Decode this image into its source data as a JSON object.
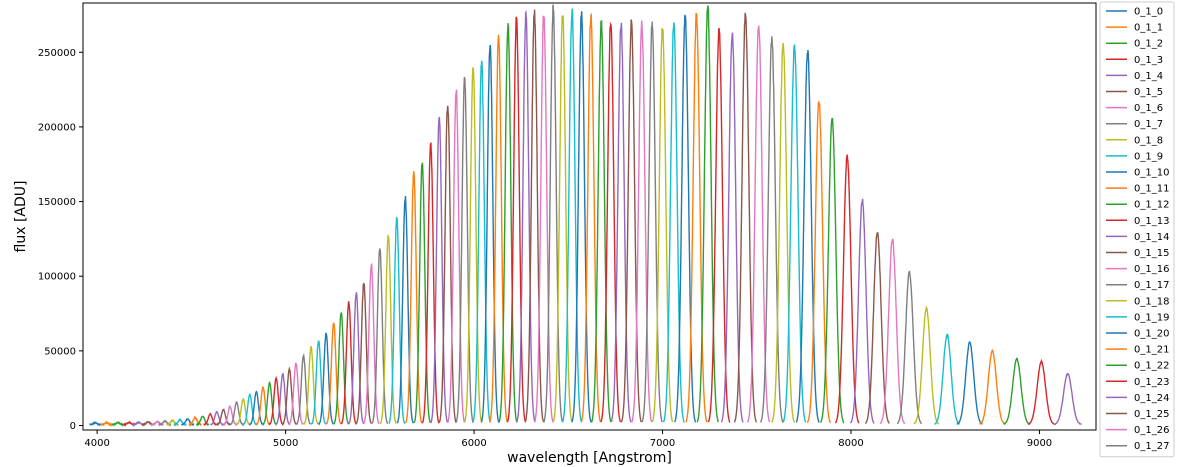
{
  "chart_data": {
    "type": "line",
    "title": "",
    "xlabel": "wavelength [Angstrom]",
    "ylabel": "flux [ADU]",
    "xlim": [
      3925,
      9300
    ],
    "ylim": [
      -3000,
      283000
    ],
    "xticks": [
      4000,
      5000,
      6000,
      7000,
      8000,
      9000
    ],
    "yticks": [
      0,
      50000,
      100000,
      150000,
      200000,
      250000
    ],
    "grid": false,
    "legend_placement": "outside-right",
    "palette": [
      "#1f77b4",
      "#ff7f0e",
      "#2ca02c",
      "#d62728",
      "#9467bd",
      "#8c564b",
      "#e377c2",
      "#7f7f7f",
      "#bcbd22",
      "#17becf"
    ],
    "series": [
      {
        "name": "0_1_0",
        "color": "#1f77b4"
      },
      {
        "name": "0_1_1",
        "color": "#ff7f0e"
      },
      {
        "name": "0_1_2",
        "color": "#2ca02c"
      },
      {
        "name": "0_1_3",
        "color": "#d62728"
      },
      {
        "name": "0_1_4",
        "color": "#9467bd"
      },
      {
        "name": "0_1_5",
        "color": "#8c564b"
      },
      {
        "name": "0_1_6",
        "color": "#e377c2"
      },
      {
        "name": "0_1_7",
        "color": "#7f7f7f"
      },
      {
        "name": "0_1_8",
        "color": "#bcbd22"
      },
      {
        "name": "0_1_9",
        "color": "#17becf"
      },
      {
        "name": "0_1_10",
        "color": "#1f77b4"
      },
      {
        "name": "0_1_11",
        "color": "#ff7f0e"
      },
      {
        "name": "0_1_12",
        "color": "#2ca02c"
      },
      {
        "name": "0_1_13",
        "color": "#d62728"
      },
      {
        "name": "0_1_14",
        "color": "#9467bd"
      },
      {
        "name": "0_1_15",
        "color": "#8c564b"
      },
      {
        "name": "0_1_16",
        "color": "#e377c2"
      },
      {
        "name": "0_1_17",
        "color": "#7f7f7f"
      },
      {
        "name": "0_1_18",
        "color": "#bcbd22"
      },
      {
        "name": "0_1_19",
        "color": "#17becf"
      },
      {
        "name": "0_1_20",
        "color": "#1f77b4"
      },
      {
        "name": "0_1_21",
        "color": "#ff7f0e"
      },
      {
        "name": "0_1_22",
        "color": "#2ca02c"
      },
      {
        "name": "0_1_23",
        "color": "#d62728"
      },
      {
        "name": "0_1_24",
        "color": "#9467bd"
      },
      {
        "name": "0_1_25",
        "color": "#8c564b"
      },
      {
        "name": "0_1_26",
        "color": "#e377c2"
      },
      {
        "name": "0_1_27",
        "color": "#7f7f7f"
      }
    ],
    "peaks": [
      [
        3990,
        1200
      ],
      [
        4050,
        1300
      ],
      [
        4110,
        1400
      ],
      [
        4170,
        1500
      ],
      [
        4220,
        1600
      ],
      [
        4270,
        1800
      ],
      [
        4320,
        2000
      ],
      [
        4360,
        2300
      ],
      [
        4400,
        2700
      ],
      [
        4440,
        3200
      ],
      [
        4480,
        3800
      ],
      [
        4520,
        4600
      ],
      [
        4560,
        5600
      ],
      [
        4600,
        7000
      ],
      [
        4635,
        8500
      ],
      [
        4670,
        10000
      ],
      [
        4705,
        12000
      ],
      [
        4740,
        15000
      ],
      [
        4775,
        17000
      ],
      [
        4810,
        20000
      ],
      [
        4845,
        22000
      ],
      [
        4880,
        25000
      ],
      [
        4915,
        28000
      ],
      [
        4950,
        31000
      ],
      [
        4985,
        34000
      ],
      [
        5020,
        37000
      ],
      [
        5055,
        41000
      ],
      [
        5095,
        46000
      ],
      [
        5135,
        52000
      ],
      [
        5175,
        56000
      ],
      [
        5215,
        61000
      ],
      [
        5255,
        68000
      ],
      [
        5295,
        75000
      ],
      [
        5335,
        82000
      ],
      [
        5375,
        88000
      ],
      [
        5415,
        95000
      ],
      [
        5455,
        107000
      ],
      [
        5500,
        118000
      ],
      [
        5545,
        127000
      ],
      [
        5590,
        138000
      ],
      [
        5635,
        152000
      ],
      [
        5680,
        168000
      ],
      [
        5725,
        175000
      ],
      [
        5770,
        188000
      ],
      [
        5815,
        206000
      ],
      [
        5860,
        215000
      ],
      [
        5905,
        224000
      ],
      [
        5950,
        232000
      ],
      [
        5995,
        240000
      ],
      [
        6040,
        243000
      ],
      [
        6085,
        255000
      ],
      [
        6130,
        260000
      ],
      [
        6180,
        268000
      ],
      [
        6225,
        272000
      ],
      [
        6275,
        274000
      ],
      [
        6320,
        276000
      ],
      [
        6370,
        275000
      ],
      [
        6420,
        279000
      ],
      [
        6470,
        276000
      ],
      [
        6520,
        278000
      ],
      [
        6570,
        275000
      ],
      [
        6620,
        274000
      ],
      [
        6675,
        270000
      ],
      [
        6725,
        270000
      ],
      [
        6780,
        268000
      ],
      [
        6835,
        270000
      ],
      [
        6890,
        268000
      ],
      [
        6945,
        268000
      ],
      [
        7000,
        267000
      ],
      [
        7060,
        269000
      ],
      [
        7120,
        274000
      ],
      [
        7180,
        274000
      ],
      [
        7240,
        279000
      ],
      [
        7300,
        264000
      ],
      [
        7370,
        263000
      ],
      [
        7440,
        275000
      ],
      [
        7510,
        269000
      ],
      [
        7580,
        258000
      ],
      [
        7640,
        255000
      ],
      [
        7700,
        254000
      ],
      [
        7770,
        250000
      ],
      [
        7830,
        217000
      ],
      [
        7900,
        205000
      ],
      [
        7980,
        180000
      ],
      [
        8060,
        150000
      ],
      [
        8140,
        129000
      ],
      [
        8220,
        124000
      ],
      [
        8310,
        102000
      ],
      [
        8400,
        78000
      ],
      [
        8510,
        60000
      ],
      [
        8630,
        55000
      ],
      [
        8750,
        49000
      ],
      [
        8880,
        44000
      ],
      [
        9010,
        42000
      ],
      [
        9150,
        34000
      ]
    ]
  }
}
